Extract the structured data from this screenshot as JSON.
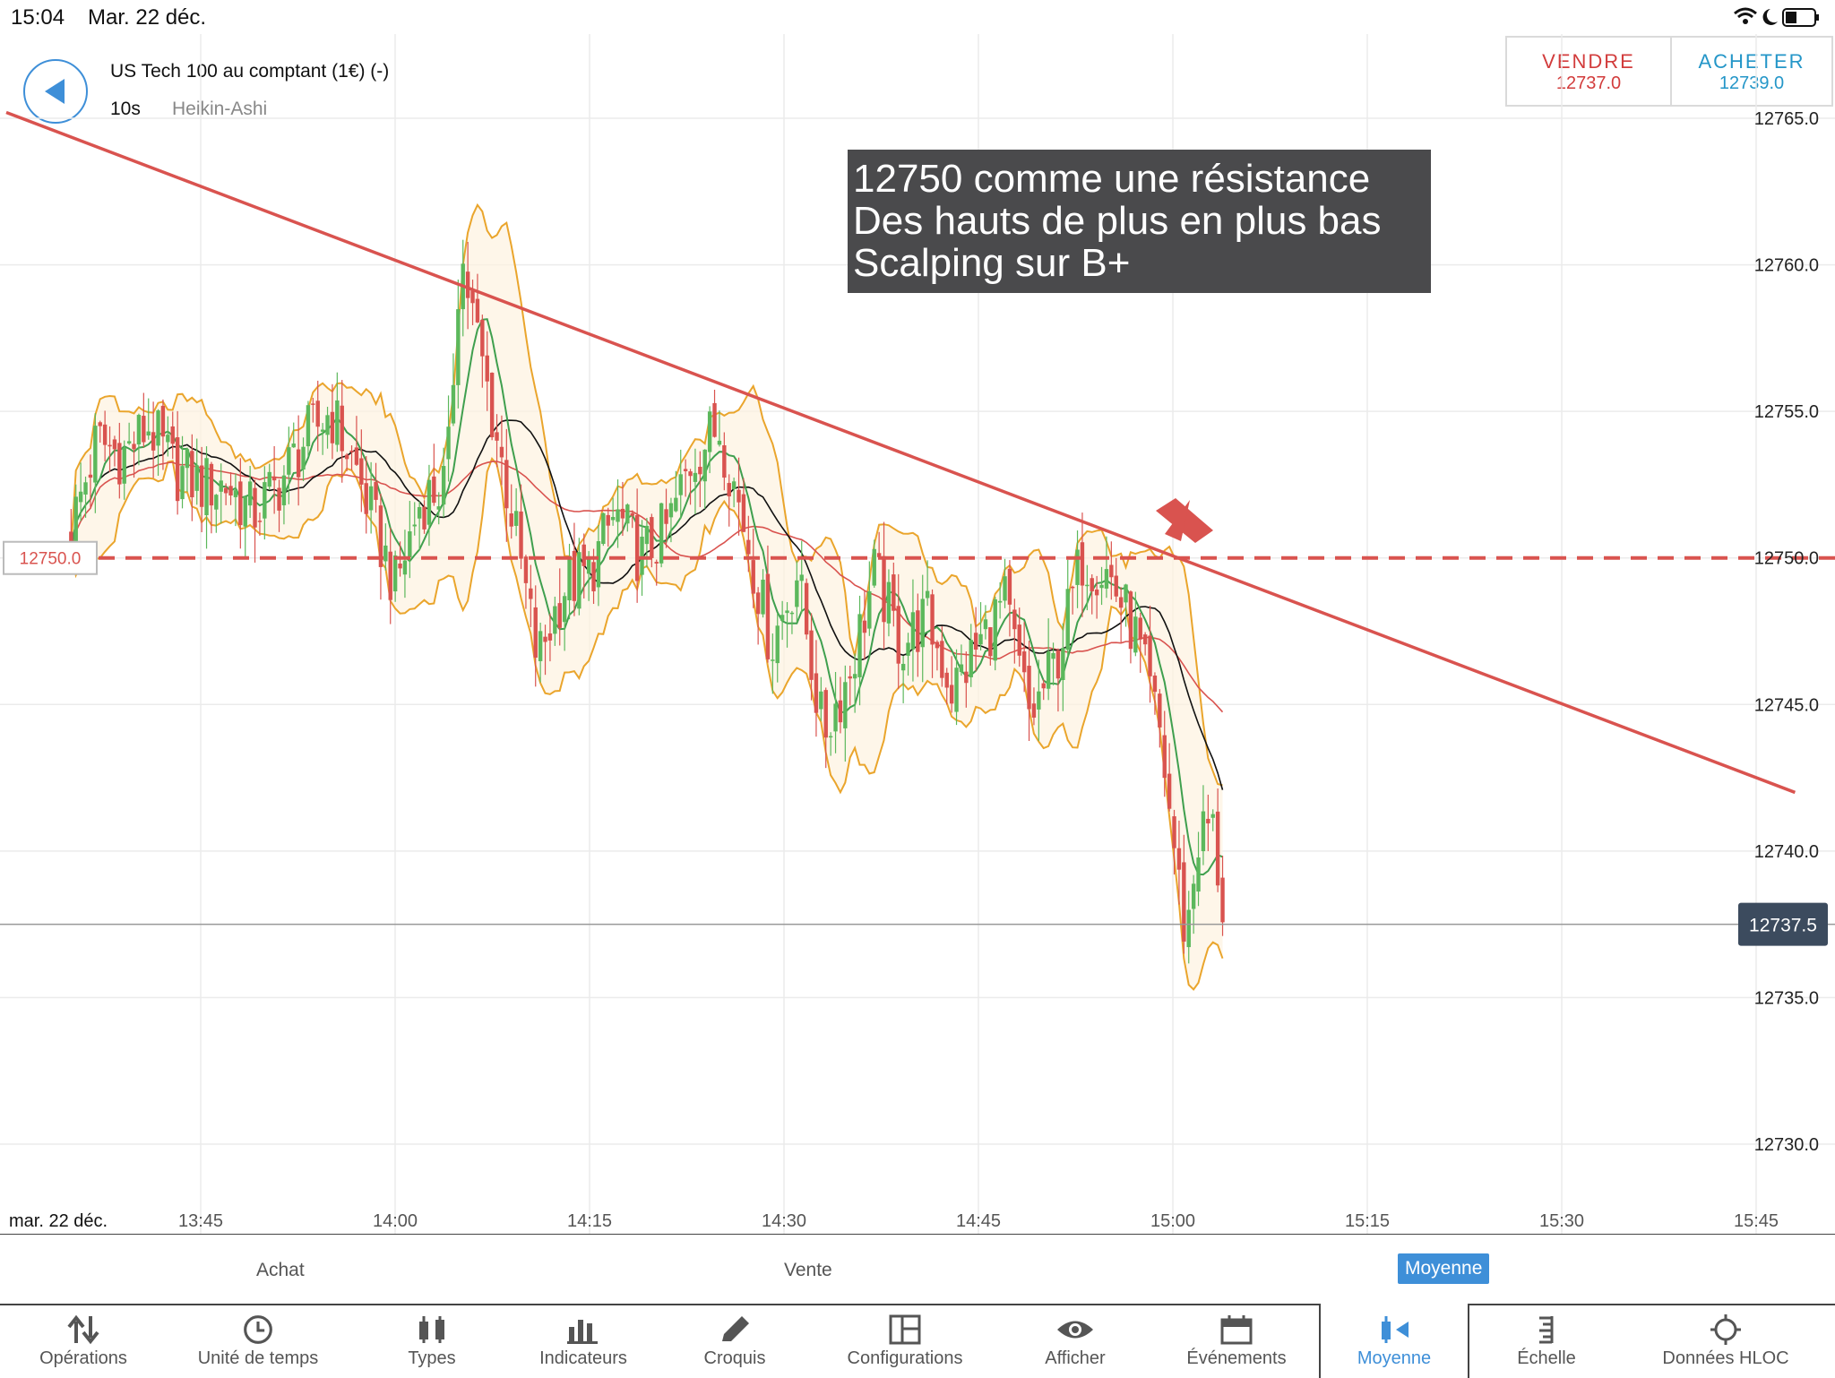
{
  "status_bar": {
    "time": "15:04",
    "date": "Mar. 22 déc."
  },
  "instrument": {
    "name": "US Tech 100 au comptant (1€) (-)",
    "interval": "10s",
    "chart_type": "Heikin-Ashi"
  },
  "trade": {
    "sell_label": "VENDRE",
    "sell_price": "12737.0",
    "buy_label": "ACHETER",
    "buy_price": "12739.0"
  },
  "annotation": {
    "lines": [
      "12750 comme une résistance",
      "Des hauts de plus en plus bas",
      "Scalping sur B+"
    ]
  },
  "colors": {
    "accent": "#3e8fd8",
    "sell": "#d23c3c",
    "buy": "#2496c8",
    "bull_candle": "#5cb85c",
    "bear_candle": "#d9534f",
    "bollinger": "#eaa52c",
    "trendline": "#d9534f",
    "sma_fast": "#3f9f4e",
    "sma_slow": "#111111",
    "sma_long": "#d9534f"
  },
  "chart_data": {
    "type": "candlestick",
    "y_ticks": [
      "12765.0",
      "12760.0",
      "12755.0",
      "12750.0",
      "12745.0",
      "12740.0",
      "12735.0",
      "12730.0"
    ],
    "ylim": [
      12728.5,
      12767.5
    ],
    "x_date_label": "mar. 22 déc.",
    "x_ticks": [
      "13:45",
      "14:00",
      "14:15",
      "14:30",
      "14:45",
      "15:00",
      "15:15",
      "15:30",
      "15:45"
    ],
    "resistance_level": 12750.0,
    "resistance_label": "12750.0",
    "current_price": 12737.5,
    "current_price_label": "12737.5",
    "price_series": [
      [
        "13:35",
        12751.0
      ],
      [
        "13:37",
        12754.0
      ],
      [
        "13:39",
        12753.5
      ],
      [
        "13:41",
        12754.5
      ],
      [
        "13:43",
        12753.0
      ],
      [
        "13:45",
        12752.5
      ],
      [
        "13:47",
        12752.5
      ],
      [
        "13:49",
        12751.5
      ],
      [
        "13:51",
        12752.5
      ],
      [
        "13:53",
        12754.0
      ],
      [
        "13:55",
        12755.0
      ],
      [
        "13:57",
        12753.0
      ],
      [
        "14:00",
        12749.0
      ],
      [
        "14:02",
        12752.0
      ],
      [
        "14:04",
        12752.5
      ],
      [
        "14:05",
        12760.5
      ],
      [
        "14:07",
        12756.0
      ],
      [
        "14:09",
        12751.5
      ],
      [
        "14:11",
        12746.5
      ],
      [
        "14:13",
        12749.0
      ],
      [
        "14:15",
        12749.5
      ],
      [
        "14:17",
        12751.5
      ],
      [
        "14:19",
        12750.0
      ],
      [
        "14:21",
        12751.0
      ],
      [
        "14:23",
        12753.5
      ],
      [
        "14:25",
        12754.5
      ],
      [
        "14:27",
        12751.0
      ],
      [
        "14:29",
        12747.0
      ],
      [
        "14:31",
        12749.5
      ],
      [
        "14:33",
        12744.0
      ],
      [
        "14:35",
        12746.0
      ],
      [
        "14:37",
        12749.5
      ],
      [
        "14:39",
        12747.0
      ],
      [
        "14:41",
        12748.0
      ],
      [
        "14:43",
        12745.5
      ],
      [
        "14:45",
        12747.0
      ],
      [
        "14:47",
        12748.5
      ],
      [
        "14:49",
        12744.5
      ],
      [
        "14:51",
        12746.5
      ],
      [
        "14:53",
        12750.0
      ],
      [
        "14:55",
        12749.5
      ],
      [
        "14:57",
        12747.5
      ],
      [
        "14:59",
        12744.0
      ],
      [
        "15:01",
        12737.0
      ],
      [
        "15:02",
        12740.5
      ],
      [
        "15:03",
        12741.0
      ],
      [
        "15:04",
        12737.5
      ]
    ],
    "trendline": [
      [
        "13:30",
        12765.2
      ],
      [
        "15:48",
        12742.0
      ]
    ]
  },
  "tabs": {
    "buy": "Achat",
    "sell": "Vente",
    "average": "Moyenne"
  },
  "toolbar": {
    "operations": "Opérations",
    "timeframe": "Unité de temps",
    "types": "Types",
    "indicators": "Indicateurs",
    "sketch": "Croquis",
    "configurations": "Configurations",
    "display": "Afficher",
    "events": "Événements",
    "average": "Moyenne",
    "scale": "Échelle",
    "ohlc": "Données HLOC"
  }
}
